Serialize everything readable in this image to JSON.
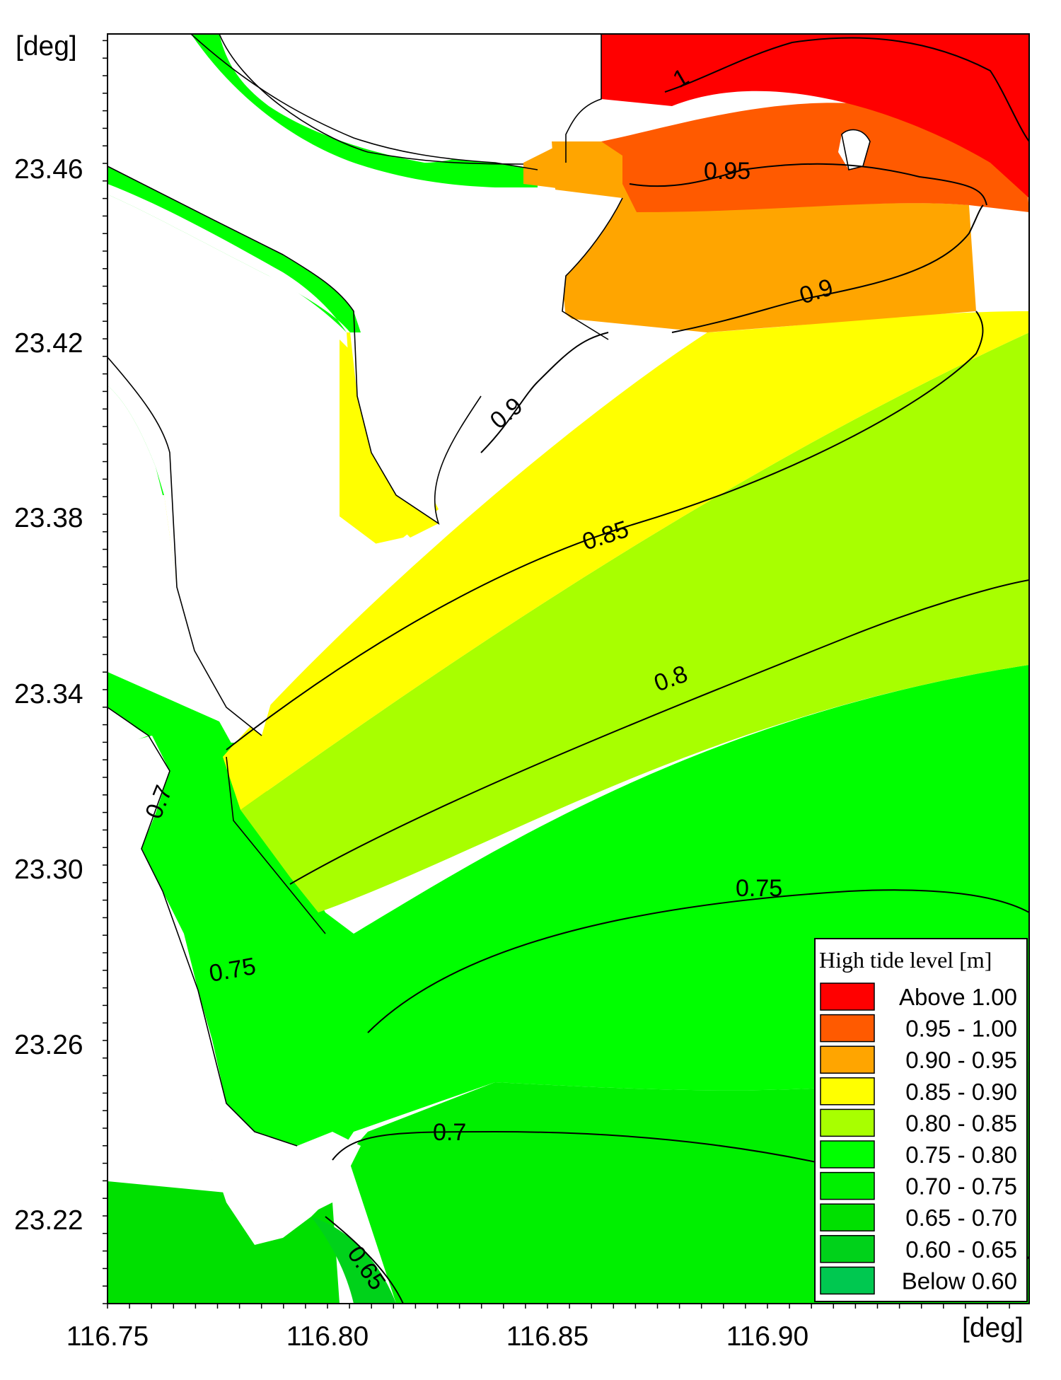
{
  "axes": {
    "y_unit": "[deg]",
    "x_unit": "[deg]",
    "x_ticks": [
      "116.75",
      "116.80",
      "116.85",
      "116.90"
    ],
    "y_ticks": [
      "23.46",
      "23.42",
      "23.38",
      "23.34",
      "23.30",
      "23.26",
      "23.22"
    ]
  },
  "contour_labels": [
    "1",
    "0.95",
    "0.9",
    "0.9",
    "0.85",
    "0.8",
    "0.75",
    "0.75",
    "0.7",
    "0.7",
    "0.65"
  ],
  "legend": {
    "title": "High tide level [m]",
    "items": [
      {
        "label": "Above 1.00",
        "color": "#ff0000"
      },
      {
        "label": "0.95 - 1.00",
        "color": "#ff5a00"
      },
      {
        "label": "0.90 - 0.95",
        "color": "#ffa500"
      },
      {
        "label": "0.85 - 0.90",
        "color": "#ffff00"
      },
      {
        "label": "0.80 - 0.85",
        "color": "#a8ff00"
      },
      {
        "label": "0.75 - 0.80",
        "color": "#00ff00"
      },
      {
        "label": "0.70 - 0.75",
        "color": "#00f000"
      },
      {
        "label": "0.65 - 0.70",
        "color": "#00e000"
      },
      {
        "label": "0.60 - 0.65",
        "color": "#00d21a"
      },
      {
        "label": "Below 0.60",
        "color": "#00c850"
      }
    ]
  },
  "colors": {
    "above_1": "#ff0000",
    "r_095_100": "#ff5a00",
    "r_090_095": "#ffa500",
    "r_085_090": "#ffff00",
    "r_080_085": "#a8ff00",
    "r_075_080": "#00ff00",
    "r_070_075": "#00f000",
    "r_065_070": "#00e000",
    "r_060_065": "#00d21a"
  }
}
